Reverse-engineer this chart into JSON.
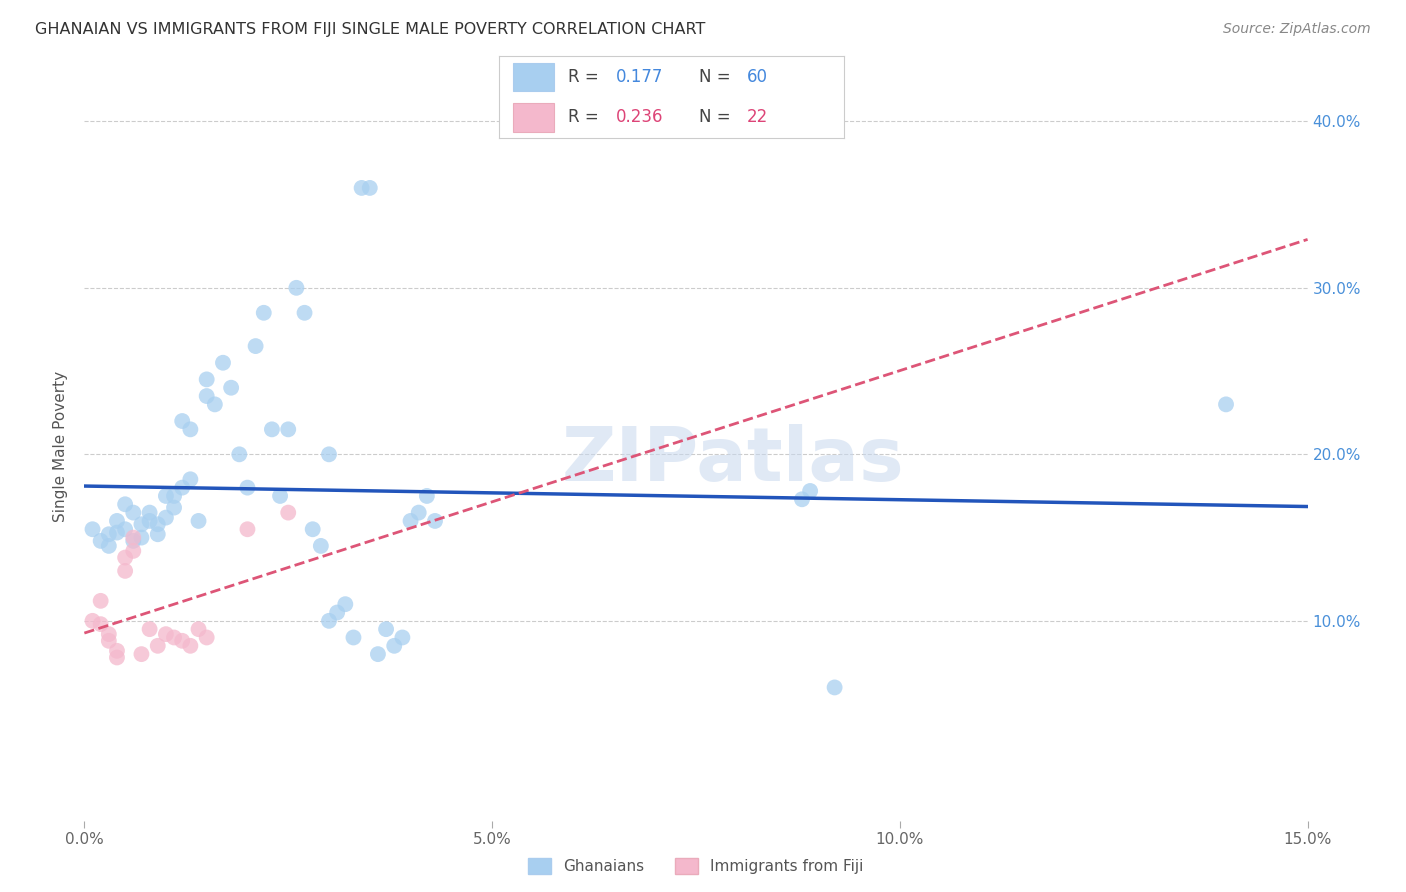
{
  "title": "GHANAIAN VS IMMIGRANTS FROM FIJI SINGLE MALE POVERTY CORRELATION CHART",
  "source": "Source: ZipAtlas.com",
  "ylabel": "Single Male Poverty",
  "xlim": [
    0.0,
    0.15
  ],
  "ylim": [
    -0.02,
    0.43
  ],
  "yticks_right": [
    0.1,
    0.2,
    0.3,
    0.4
  ],
  "ytick_labels_right": [
    "10.0%",
    "20.0%",
    "30.0%",
    "40.0%"
  ],
  "xtick_vals": [
    0.0,
    0.05,
    0.1,
    0.15
  ],
  "xtick_labels": [
    "0.0%",
    "5.0%",
    "10.0%",
    "15.0%"
  ],
  "legend_r1": "R = ",
  "legend_v1": "0.177",
  "legend_n1_label": "N = ",
  "legend_n1": "60",
  "legend_r2": "R = ",
  "legend_v2": "0.236",
  "legend_n2_label": "N = ",
  "legend_n2": "22",
  "watermark": "ZIPatlas",
  "background_color": "#ffffff",
  "grid_color": "#cccccc",
  "blue_color": "#a8cff0",
  "pink_color": "#f4b8cc",
  "line_blue": "#2255bb",
  "line_pink": "#dd5577",
  "blue_scatter": [
    [
      0.001,
      0.155
    ],
    [
      0.002,
      0.148
    ],
    [
      0.003,
      0.152
    ],
    [
      0.003,
      0.145
    ],
    [
      0.004,
      0.16
    ],
    [
      0.004,
      0.153
    ],
    [
      0.005,
      0.155
    ],
    [
      0.005,
      0.17
    ],
    [
      0.006,
      0.165
    ],
    [
      0.006,
      0.148
    ],
    [
      0.007,
      0.15
    ],
    [
      0.007,
      0.158
    ],
    [
      0.008,
      0.165
    ],
    [
      0.008,
      0.16
    ],
    [
      0.009,
      0.158
    ],
    [
      0.009,
      0.152
    ],
    [
      0.01,
      0.175
    ],
    [
      0.01,
      0.162
    ],
    [
      0.011,
      0.175
    ],
    [
      0.011,
      0.168
    ],
    [
      0.012,
      0.18
    ],
    [
      0.012,
      0.22
    ],
    [
      0.013,
      0.215
    ],
    [
      0.013,
      0.185
    ],
    [
      0.014,
      0.16
    ],
    [
      0.015,
      0.245
    ],
    [
      0.015,
      0.235
    ],
    [
      0.016,
      0.23
    ],
    [
      0.017,
      0.255
    ],
    [
      0.018,
      0.24
    ],
    [
      0.019,
      0.2
    ],
    [
      0.02,
      0.18
    ],
    [
      0.021,
      0.265
    ],
    [
      0.022,
      0.285
    ],
    [
      0.023,
      0.215
    ],
    [
      0.024,
      0.175
    ],
    [
      0.025,
      0.215
    ],
    [
      0.026,
      0.3
    ],
    [
      0.027,
      0.285
    ],
    [
      0.028,
      0.155
    ],
    [
      0.029,
      0.145
    ],
    [
      0.03,
      0.2
    ],
    [
      0.03,
      0.1
    ],
    [
      0.031,
      0.105
    ],
    [
      0.032,
      0.11
    ],
    [
      0.033,
      0.09
    ],
    [
      0.034,
      0.36
    ],
    [
      0.035,
      0.36
    ],
    [
      0.036,
      0.08
    ],
    [
      0.037,
      0.095
    ],
    [
      0.038,
      0.085
    ],
    [
      0.039,
      0.09
    ],
    [
      0.04,
      0.16
    ],
    [
      0.041,
      0.165
    ],
    [
      0.042,
      0.175
    ],
    [
      0.043,
      0.16
    ],
    [
      0.088,
      0.173
    ],
    [
      0.089,
      0.178
    ],
    [
      0.092,
      0.06
    ],
    [
      0.14,
      0.23
    ]
  ],
  "pink_scatter": [
    [
      0.001,
      0.1
    ],
    [
      0.002,
      0.098
    ],
    [
      0.002,
      0.112
    ],
    [
      0.003,
      0.092
    ],
    [
      0.003,
      0.088
    ],
    [
      0.004,
      0.078
    ],
    [
      0.004,
      0.082
    ],
    [
      0.005,
      0.13
    ],
    [
      0.005,
      0.138
    ],
    [
      0.006,
      0.15
    ],
    [
      0.006,
      0.142
    ],
    [
      0.007,
      0.08
    ],
    [
      0.008,
      0.095
    ],
    [
      0.009,
      0.085
    ],
    [
      0.01,
      0.092
    ],
    [
      0.011,
      0.09
    ],
    [
      0.012,
      0.088
    ],
    [
      0.013,
      0.085
    ],
    [
      0.014,
      0.095
    ],
    [
      0.015,
      0.09
    ],
    [
      0.02,
      0.155
    ],
    [
      0.025,
      0.165
    ]
  ]
}
